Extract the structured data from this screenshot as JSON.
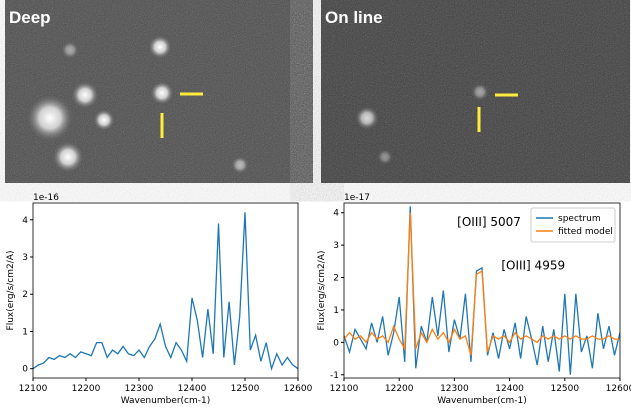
{
  "images": [
    {
      "label": "Deep"
    },
    {
      "label": "On line"
    }
  ],
  "chart_data": [
    {
      "type": "line",
      "y_offset_label": "1e-16",
      "xlabel": "Wavenumber(cm-1)",
      "ylabel": "Flux(erg/s/cm2/A)",
      "x": [
        12100,
        12110,
        12120,
        12130,
        12140,
        12150,
        12160,
        12170,
        12180,
        12190,
        12200,
        12210,
        12220,
        12230,
        12240,
        12250,
        12260,
        12270,
        12280,
        12290,
        12300,
        12310,
        12320,
        12330,
        12340,
        12350,
        12360,
        12370,
        12380,
        12390,
        12400,
        12410,
        12420,
        12430,
        12440,
        12450,
        12460,
        12470,
        12480,
        12490,
        12500,
        12510,
        12520,
        12530,
        12540,
        12550,
        12560,
        12570,
        12580,
        12590,
        12600
      ],
      "values": [
        0.0,
        0.1,
        0.15,
        0.3,
        0.25,
        0.35,
        0.3,
        0.4,
        0.3,
        0.45,
        0.4,
        0.35,
        0.7,
        0.7,
        0.3,
        0.5,
        0.4,
        0.6,
        0.4,
        0.35,
        0.5,
        0.3,
        0.6,
        0.8,
        1.2,
        0.6,
        0.3,
        0.7,
        0.5,
        0.2,
        1.9,
        1.3,
        0.3,
        1.6,
        0.4,
        3.9,
        0.3,
        1.8,
        0.1,
        1.4,
        4.2,
        0.5,
        0.9,
        0.2,
        0.7,
        0.0,
        0.4,
        0.1,
        0.3,
        0.1,
        0.0
      ],
      "color": "#1f77b4",
      "xlim": [
        12100,
        12600
      ],
      "xticks": [
        12100,
        12200,
        12300,
        12400,
        12500,
        12600
      ],
      "ylim": [
        -0.25,
        4.45
      ],
      "yticks": [
        0,
        1,
        2,
        3,
        4
      ],
      "grid": false
    },
    {
      "type": "line",
      "y_offset_label": "1e-17",
      "xlabel": "Wavenumber(cm-1)",
      "ylabel": "Flux(erg/s/cm2/A)",
      "annotations": [
        "[OIII] 5007",
        "[OIII] 4959"
      ],
      "x": [
        12100,
        12110,
        12120,
        12130,
        12140,
        12150,
        12160,
        12170,
        12180,
        12190,
        12200,
        12210,
        12220,
        12230,
        12240,
        12250,
        12260,
        12270,
        12280,
        12290,
        12300,
        12310,
        12320,
        12330,
        12340,
        12350,
        12360,
        12370,
        12380,
        12390,
        12400,
        12410,
        12420,
        12430,
        12440,
        12450,
        12460,
        12470,
        12480,
        12490,
        12500,
        12510,
        12520,
        12530,
        12540,
        12550,
        12560,
        12570,
        12580,
        12590,
        12600
      ],
      "series": [
        {
          "name": "spectrum",
          "color": "#1f77b4",
          "values": [
            0.2,
            -0.3,
            0.4,
            0.1,
            -0.2,
            0.6,
            0.0,
            0.8,
            -0.4,
            0.3,
            1.4,
            -0.6,
            4.2,
            -0.8,
            0.5,
            0.0,
            1.4,
            0.2,
            1.6,
            -0.3,
            0.7,
            0.1,
            1.5,
            -0.6,
            2.2,
            2.3,
            -0.4,
            0.3,
            -0.5,
            0.4,
            -0.2,
            0.6,
            -0.5,
            0.8,
            0.1,
            -0.7,
            0.5,
            -0.6,
            0.4,
            -0.9,
            1.5,
            -1.0,
            1.5,
            -0.3,
            0.2,
            -0.8,
            0.9,
            -0.2,
            0.5,
            -0.4,
            0.3
          ]
        },
        {
          "name": "fitted model",
          "color": "#ff7f0e",
          "values": [
            0.1,
            0.3,
            0.1,
            0.2,
            0.0,
            0.3,
            0.1,
            0.2,
            0.0,
            0.5,
            0.1,
            -0.2,
            4.0,
            -0.2,
            0.3,
            0.0,
            0.4,
            0.1,
            0.3,
            0.0,
            0.4,
            0.1,
            0.2,
            -0.4,
            2.1,
            2.2,
            -0.3,
            0.2,
            0.1,
            0.2,
            0.0,
            0.3,
            0.1,
            0.2,
            0.1,
            0.0,
            0.2,
            0.1,
            0.2,
            0.1,
            0.2,
            0.1,
            0.2,
            0.1,
            0.1,
            0.2,
            0.1,
            0.1,
            0.2,
            0.1,
            0.1
          ]
        }
      ],
      "legend": "upper right",
      "xlim": [
        12100,
        12600
      ],
      "xticks": [
        12100,
        12200,
        12300,
        12400,
        12500,
        12600
      ],
      "ylim": [
        -1.1,
        4.3
      ],
      "yticks": [
        -1,
        0,
        1,
        2,
        3,
        4
      ],
      "grid": false
    }
  ]
}
